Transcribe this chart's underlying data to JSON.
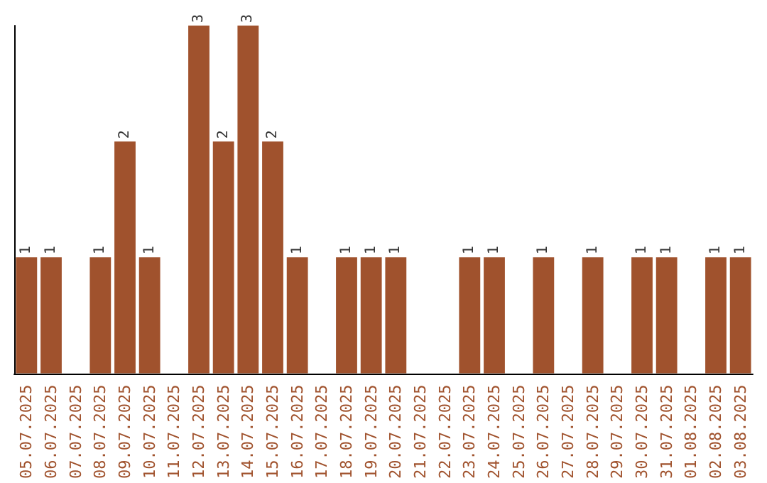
{
  "chart_data": {
    "type": "bar",
    "categories": [
      "05.07.2025",
      "06.07.2025",
      "07.07.2025",
      "08.07.2025",
      "09.07.2025",
      "10.07.2025",
      "11.07.2025",
      "12.07.2025",
      "13.07.2025",
      "14.07.2025",
      "15.07.2025",
      "16.07.2025",
      "17.07.2025",
      "18.07.2025",
      "19.07.2025",
      "20.07.2025",
      "21.07.2025",
      "22.07.2025",
      "23.07.2025",
      "24.07.2025",
      "25.07.2025",
      "26.07.2025",
      "27.07.2025",
      "28.07.2025",
      "29.07.2025",
      "30.07.2025",
      "31.07.2025",
      "01.08.2025",
      "02.08.2025",
      "03.08.2025"
    ],
    "values": [
      1,
      1,
      0,
      1,
      2,
      1,
      0,
      3,
      2,
      3,
      2,
      1,
      0,
      1,
      1,
      1,
      0,
      0,
      1,
      1,
      0,
      1,
      0,
      1,
      0,
      1,
      1,
      0,
      1,
      1
    ],
    "value_labels": [
      "1",
      "1",
      null,
      "1",
      "2",
      "1",
      null,
      "3",
      "2",
      "3",
      "2",
      "1",
      null,
      "1",
      "1",
      "1",
      null,
      null,
      "1",
      "1",
      null,
      "1",
      null,
      "1",
      null,
      "1",
      "1",
      null,
      "1",
      "1"
    ],
    "color": "#a0522d"
  }
}
